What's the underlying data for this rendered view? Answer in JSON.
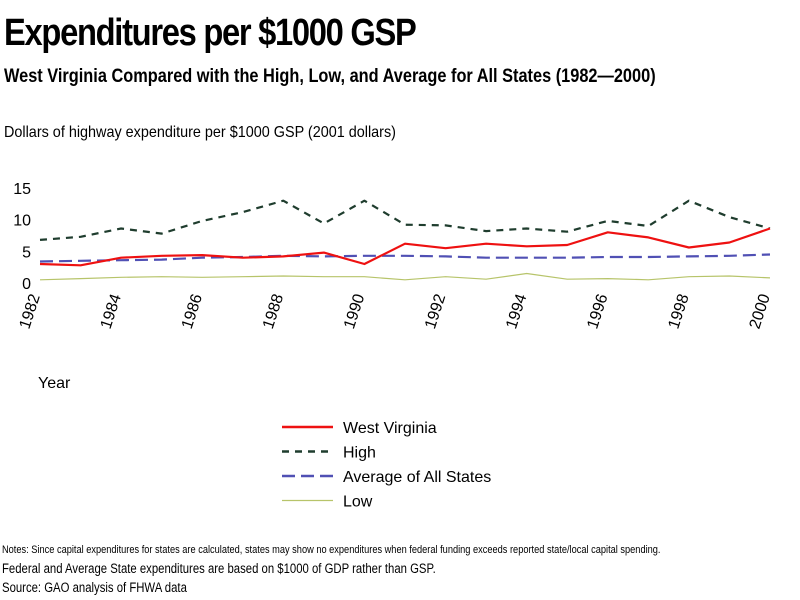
{
  "header": {
    "title": "Expenditures per $1000 GSP",
    "subtitle": "West Virginia Compared with the High, Low, and Average for All States (1982—2000)",
    "ylabel": "Dollars of highway expenditure per $1000 GSP  (2001 dollars)",
    "xlabel": "Year"
  },
  "notes": {
    "line1": "Notes: Since capital expenditures for states are calculated, states may show no expenditures when federal funding exceeds reported state/local capital spending.",
    "line2": "Federal and Average State expenditures are based on $1000 of GDP rather than GSP.",
    "line3": "Source: GAO  analysis of FHWA data"
  },
  "chart_data": {
    "type": "line",
    "title": "Expenditures per $1000 GSP",
    "subtitle": "West Virginia Compared with the High, Low, and Average for All States (1982—2000)",
    "xlabel": "Year",
    "ylabel": "Dollars of highway expenditure per $1000 GSP  (2001 dollars)",
    "x": [
      1982,
      1983,
      1984,
      1985,
      1986,
      1987,
      1988,
      1989,
      1990,
      1991,
      1992,
      1993,
      1994,
      1995,
      1996,
      1997,
      1998,
      1999,
      2000
    ],
    "x_tick_labels": [
      "1982",
      "1984",
      "1986",
      "1988",
      "1990",
      "1992",
      "1994",
      "1996",
      "1998",
      "2000"
    ],
    "x_tick_values": [
      1982,
      1984,
      1986,
      1988,
      1990,
      1992,
      1994,
      1996,
      1998,
      2000
    ],
    "ylim": [
      0,
      15
    ],
    "y_ticks": [
      0,
      5,
      10,
      15
    ],
    "grid": false,
    "legend_position": "bottom-center",
    "series": [
      {
        "name": "West Virginia",
        "color": "#ee1111",
        "dash": "solid",
        "values": [
          3.0,
          2.8,
          4.0,
          4.3,
          4.4,
          4.0,
          4.2,
          4.8,
          3.0,
          6.2,
          5.5,
          6.2,
          5.8,
          6.0,
          8.0,
          7.2,
          5.6,
          6.4,
          8.6
        ]
      },
      {
        "name": "High",
        "color": "#1f3d2e",
        "dash": "dashed",
        "values": [
          6.8,
          7.3,
          8.6,
          7.8,
          9.8,
          11.2,
          13.0,
          9.4,
          13.0,
          9.2,
          9.1,
          8.2,
          8.6,
          8.1,
          9.8,
          9.0,
          13.0,
          10.4,
          8.6
        ]
      },
      {
        "name": "Average of All States",
        "color": "#5050b4",
        "dash": "longdash",
        "values": [
          3.4,
          3.5,
          3.6,
          3.7,
          4.0,
          4.1,
          4.3,
          4.2,
          4.3,
          4.3,
          4.2,
          4.0,
          4.0,
          4.0,
          4.1,
          4.1,
          4.2,
          4.3,
          4.5
        ]
      },
      {
        "name": "Low",
        "color": "#b7c46a",
        "dash": "solid",
        "values": [
          0.5,
          0.7,
          0.9,
          1.0,
          0.9,
          1.0,
          1.1,
          1.0,
          1.0,
          0.5,
          1.0,
          0.6,
          1.5,
          0.6,
          0.7,
          0.5,
          1.0,
          1.1,
          0.8
        ]
      }
    ]
  }
}
